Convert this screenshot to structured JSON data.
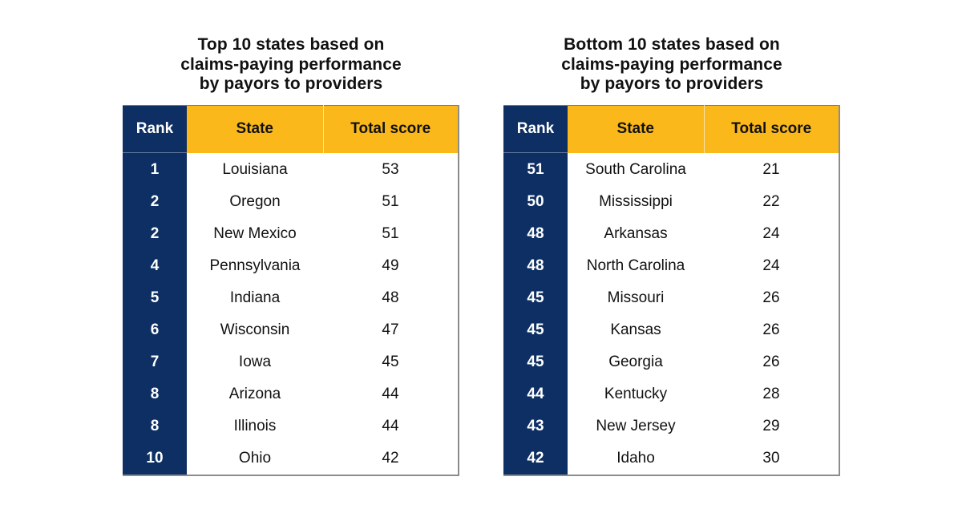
{
  "colors": {
    "navy": "#0d2f63",
    "gold": "#fbb81b",
    "text": "#111111",
    "background": "#ffffff"
  },
  "top_table": {
    "title_lines": [
      "Top 10 states based on",
      "claims-paying performance",
      "by payors to providers"
    ],
    "headers": {
      "rank": "Rank",
      "state": "State",
      "score": "Total score"
    },
    "rows": [
      {
        "rank": "1",
        "state": "Louisiana",
        "score": "53"
      },
      {
        "rank": "2",
        "state": "Oregon",
        "score": "51"
      },
      {
        "rank": "2",
        "state": "New Mexico",
        "score": "51"
      },
      {
        "rank": "4",
        "state": "Pennsylvania",
        "score": "49"
      },
      {
        "rank": "5",
        "state": "Indiana",
        "score": "48"
      },
      {
        "rank": "6",
        "state": "Wisconsin",
        "score": "47"
      },
      {
        "rank": "7",
        "state": "Iowa",
        "score": "45"
      },
      {
        "rank": "8",
        "state": "Arizona",
        "score": "44"
      },
      {
        "rank": "8",
        "state": "Illinois",
        "score": "44"
      },
      {
        "rank": "10",
        "state": "Ohio",
        "score": "42"
      }
    ]
  },
  "bottom_table": {
    "title_lines": [
      "Bottom 10 states based on",
      "claims-paying performance",
      "by payors to providers"
    ],
    "headers": {
      "rank": "Rank",
      "state": "State",
      "score": "Total score"
    },
    "rows": [
      {
        "rank": "51",
        "state": "South Carolina",
        "score": "21"
      },
      {
        "rank": "50",
        "state": "Mississippi",
        "score": "22"
      },
      {
        "rank": "48",
        "state": "Arkansas",
        "score": "24"
      },
      {
        "rank": "48",
        "state": "North Carolina",
        "score": "24"
      },
      {
        "rank": "45",
        "state": "Missouri",
        "score": "26"
      },
      {
        "rank": "45",
        "state": "Kansas",
        "score": "26"
      },
      {
        "rank": "45",
        "state": "Georgia",
        "score": "26"
      },
      {
        "rank": "44",
        "state": "Kentucky",
        "score": "28"
      },
      {
        "rank": "43",
        "state": "New Jersey",
        "score": "29"
      },
      {
        "rank": "42",
        "state": "Idaho",
        "score": "30"
      }
    ]
  }
}
